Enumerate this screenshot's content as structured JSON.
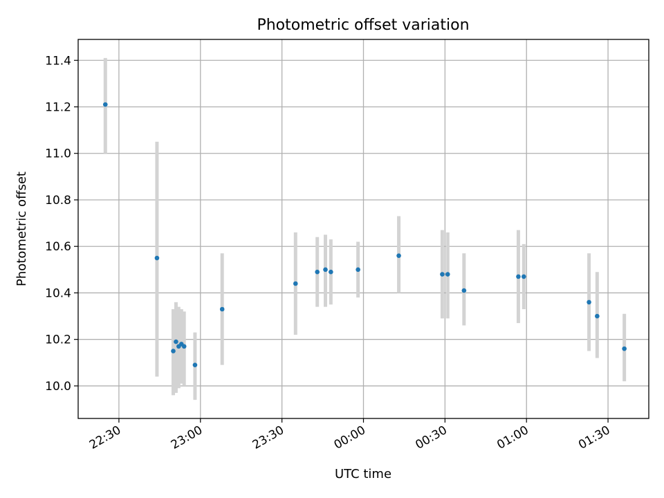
{
  "chart_data": {
    "type": "scatter",
    "title": "Photometric offset variation",
    "xlabel": "UTC time",
    "ylabel": "Photometric offset",
    "x_tick_labels": [
      "22:30",
      "23:00",
      "23:30",
      "00:00",
      "00:30",
      "01:00",
      "01:30"
    ],
    "y_tick_labels": [
      "10.0",
      "10.2",
      "10.4",
      "10.6",
      "10.8",
      "11.0",
      "11.2",
      "11.4"
    ],
    "xlim": [
      "22:15",
      "01:45"
    ],
    "ylim": [
      9.86,
      11.49
    ],
    "grid": true,
    "point_color": "#1f77b4",
    "errorbar_color": "#d3d3d3",
    "points": [
      {
        "time": "22:25",
        "y": 11.21,
        "low": 11.0,
        "high": 11.41
      },
      {
        "time": "22:44",
        "y": 10.55,
        "low": 10.04,
        "high": 11.05
      },
      {
        "time": "22:50",
        "y": 10.15,
        "low": 9.96,
        "high": 10.33
      },
      {
        "time": "22:51",
        "y": 10.19,
        "low": 9.97,
        "high": 10.36
      },
      {
        "time": "22:52",
        "y": 10.17,
        "low": 9.99,
        "high": 10.34
      },
      {
        "time": "22:53",
        "y": 10.18,
        "low": 10.01,
        "high": 10.33
      },
      {
        "time": "22:54",
        "y": 10.17,
        "low": 10.0,
        "high": 10.32
      },
      {
        "time": "22:58",
        "y": 10.09,
        "low": 9.94,
        "high": 10.23
      },
      {
        "time": "23:08",
        "y": 10.33,
        "low": 10.09,
        "high": 10.57
      },
      {
        "time": "23:35",
        "y": 10.44,
        "low": 10.22,
        "high": 10.66
      },
      {
        "time": "23:43",
        "y": 10.49,
        "low": 10.34,
        "high": 10.64
      },
      {
        "time": "23:46",
        "y": 10.5,
        "low": 10.34,
        "high": 10.65
      },
      {
        "time": "23:48",
        "y": 10.49,
        "low": 10.35,
        "high": 10.63
      },
      {
        "time": "23:58",
        "y": 10.5,
        "low": 10.38,
        "high": 10.62
      },
      {
        "time": "00:13",
        "y": 10.56,
        "low": 10.4,
        "high": 10.73
      },
      {
        "time": "00:29",
        "y": 10.48,
        "low": 10.29,
        "high": 10.67
      },
      {
        "time": "00:31",
        "y": 10.48,
        "low": 10.29,
        "high": 10.66
      },
      {
        "time": "00:37",
        "y": 10.41,
        "low": 10.26,
        "high": 10.57
      },
      {
        "time": "00:57",
        "y": 10.47,
        "low": 10.27,
        "high": 10.67
      },
      {
        "time": "00:59",
        "y": 10.47,
        "low": 10.33,
        "high": 10.61
      },
      {
        "time": "01:23",
        "y": 10.36,
        "low": 10.15,
        "high": 10.57
      },
      {
        "time": "01:26",
        "y": 10.3,
        "low": 10.12,
        "high": 10.49
      },
      {
        "time": "01:36",
        "y": 10.16,
        "low": 10.02,
        "high": 10.31
      }
    ]
  }
}
